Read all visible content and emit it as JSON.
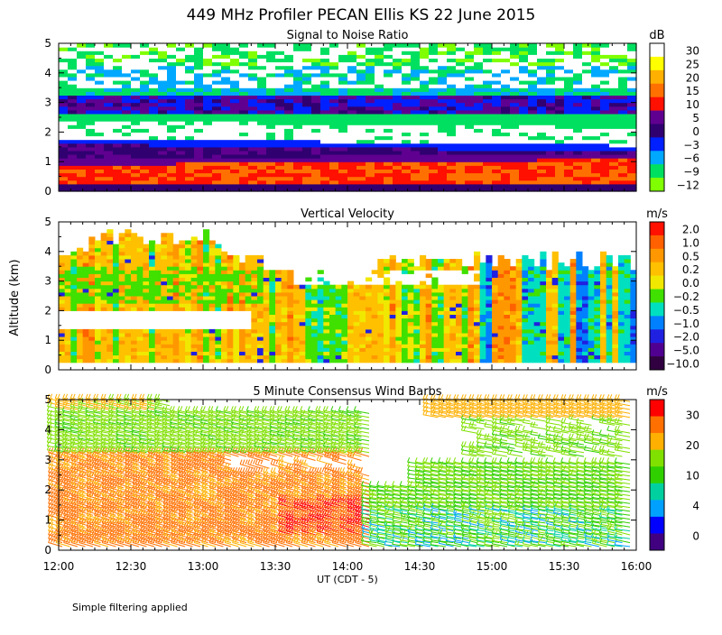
{
  "title": "449 MHz Profiler PECAN Ellis KS 22 June 2015",
  "y_axis_label": "Altitude (km)",
  "x_axis_label": "UT (CDT - 5)",
  "x_ticks": [
    "12:00",
    "12:30",
    "13:00",
    "13:30",
    "14:00",
    "14:30",
    "15:00",
    "15:30",
    "16:00"
  ],
  "y_ticks": [
    "0",
    "1",
    "2",
    "3",
    "4",
    "5"
  ],
  "footnote": "Simple filtering applied",
  "chart_data": [
    {
      "type": "heatmap",
      "title": "Signal to Noise Ratio",
      "unit": "dB",
      "x_range": [
        "12:00",
        "16:00"
      ],
      "ylim": [
        0,
        5
      ],
      "colorbar": {
        "labels": [
          "30",
          "25",
          "20",
          "15",
          "10",
          "5",
          "0",
          "−3",
          "−6",
          "−9",
          "−12"
        ],
        "colors": [
          "#ffffff",
          "#ffff00",
          "#ffb000",
          "#ff7000",
          "#ff1000",
          "#600090",
          "#300070",
          "#0020ff",
          "#00a8ff",
          "#00e060",
          "#80ff00"
        ]
      },
      "structure": [
        {
          "altitude_km": [
            0.2,
            1.1
          ],
          "value_db": [
            15,
            30
          ]
        },
        {
          "altitude_km": [
            1.1,
            1.7
          ],
          "value_db": [
            0,
            5
          ]
        },
        {
          "altitude_km": [
            1.7,
            2.3
          ],
          "value_db": [
            30,
            30
          ]
        },
        {
          "altitude_km": [
            2.3,
            3.3
          ],
          "value_db": [
            -3,
            5
          ]
        },
        {
          "altitude_km": [
            3.3,
            5.0
          ],
          "value_db": [
            -12,
            30
          ]
        }
      ]
    },
    {
      "type": "heatmap",
      "title": "Vertical Velocity",
      "unit": "m/s",
      "x_range": [
        "12:00",
        "16:00"
      ],
      "ylim": [
        0,
        5
      ],
      "colorbar": {
        "labels": [
          "2.0",
          "1.0",
          "0.5",
          "0.2",
          "0.0",
          "−0.2",
          "−0.5",
          "−1.0",
          "−2.0",
          "−5.0",
          "−10.0"
        ],
        "colors": [
          "#ff1000",
          "#ff6000",
          "#ff9800",
          "#ffc000",
          "#f0e800",
          "#40e000",
          "#00e0c0",
          "#0080ff",
          "#2020e0",
          "#500090",
          "#300040"
        ]
      },
      "structure": [
        {
          "altitude_km": [
            0.2,
            1.8
          ],
          "value_ms": [
            -0.5,
            0.5
          ]
        },
        {
          "altitude_km": [
            1.8,
            3.5
          ],
          "value_ms": [
            -0.2,
            0.2
          ]
        },
        {
          "altitude_km": [
            3.5,
            5.0
          ],
          "value_ms": [
            -0.5,
            0.2
          ]
        }
      ]
    },
    {
      "type": "wind_barbs",
      "title": "5 Minute Consensus Wind Barbs",
      "unit": "m/s",
      "x_range": [
        "12:00",
        "16:00"
      ],
      "ylim": [
        0,
        5
      ],
      "colorbar": {
        "labels": [
          "30",
          "20",
          "10",
          "4",
          "0"
        ],
        "colors": [
          "#ff0000",
          "#ff7000",
          "#ffb000",
          "#80e000",
          "#30d000",
          "#00d0a0",
          "#00a0ff",
          "#0000ff",
          "#400080"
        ]
      },
      "structure": [
        {
          "time": [
            "12:00",
            "14:15"
          ],
          "altitude_km": [
            0,
            3.2
          ],
          "speed_ms": [
            18,
            25
          ]
        },
        {
          "time": [
            "14:15",
            "16:00"
          ],
          "altitude_km": [
            0,
            1.5
          ],
          "speed_ms": [
            4,
            12
          ]
        },
        {
          "time": [
            "12:00",
            "14:00"
          ],
          "altitude_km": [
            3.2,
            5
          ],
          "speed_ms": [
            10,
            15
          ]
        },
        {
          "time": [
            "14:30",
            "16:00"
          ],
          "altitude_km": [
            4.4,
            5
          ],
          "speed_ms": [
            15,
            20
          ]
        }
      ]
    }
  ]
}
